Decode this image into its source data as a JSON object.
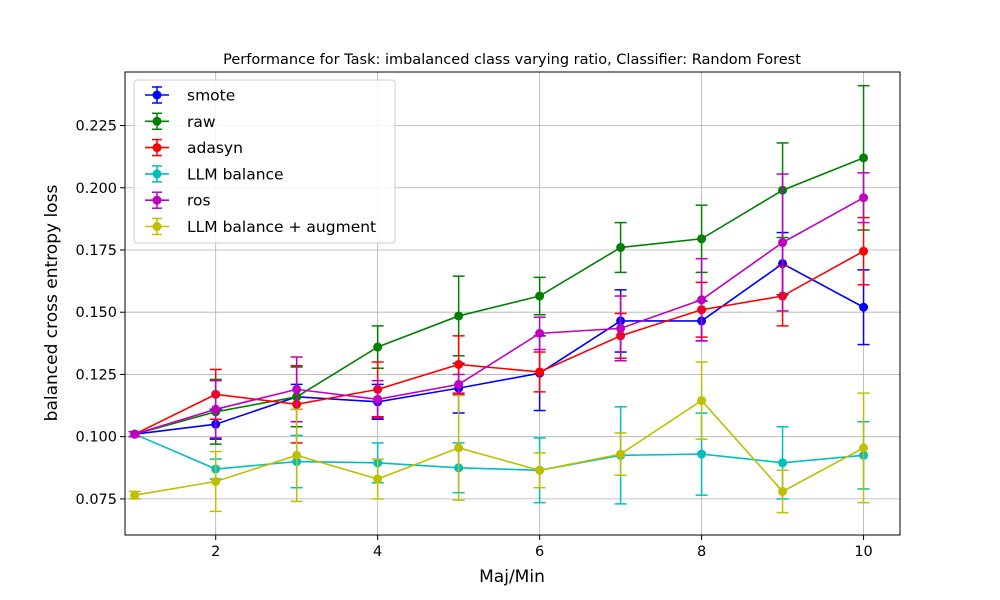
{
  "chart_data": {
    "type": "line",
    "title": "Performance for Task: imbalanced class varying ratio, Classifier: Random Forest",
    "xlabel": "Maj/Min",
    "ylabel": "balanced cross entropy loss",
    "xlim": [
      0.88,
      10.45
    ],
    "ylim": [
      0.0605,
      0.2465
    ],
    "xticks": [
      2,
      4,
      6,
      8,
      10
    ],
    "yticks": [
      0.075,
      0.1,
      0.125,
      0.15,
      0.175,
      0.2,
      0.225
    ],
    "ytick_labels": [
      "0.075",
      "0.100",
      "0.125",
      "0.150",
      "0.175",
      "0.200",
      "0.225"
    ],
    "grid": true,
    "legend_position": "top-left",
    "error_bars": true,
    "x": [
      1,
      2,
      3,
      4,
      5,
      6,
      7,
      8,
      9,
      10
    ],
    "series": [
      {
        "name": "smote",
        "color": "#0000ff",
        "values": [
          0.101,
          0.105,
          0.116,
          0.114,
          0.1195,
          0.1255,
          0.1465,
          0.1465,
          0.1695,
          0.152
        ],
        "errors": [
          0.001,
          0.006,
          0.005,
          0.007,
          0.01,
          0.015,
          0.0125,
          0.008,
          0.0125,
          0.015
        ]
      },
      {
        "name": "raw",
        "color": "#008000",
        "values": [
          0.101,
          0.11,
          0.116,
          0.136,
          0.1485,
          0.1565,
          0.176,
          0.1795,
          0.199,
          0.212
        ],
        "errors": [
          0.001,
          0.013,
          0.012,
          0.0085,
          0.016,
          0.0075,
          0.01,
          0.0135,
          0.019,
          0.029
        ]
      },
      {
        "name": "adasyn",
        "color": "#ff0000",
        "values": [
          0.101,
          0.117,
          0.113,
          0.119,
          0.129,
          0.126,
          0.1405,
          0.151,
          0.1565,
          0.1745
        ],
        "errors": [
          0.001,
          0.01,
          0.0155,
          0.011,
          0.0115,
          0.008,
          0.009,
          0.011,
          0.012,
          0.0135
        ]
      },
      {
        "name": "LLM balance",
        "color": "#00bfbf",
        "values": [
          0.101,
          0.087,
          0.09,
          0.0895,
          0.0875,
          0.0865,
          0.0925,
          0.093,
          0.0895,
          0.0925
        ],
        "errors": [
          0.001,
          0.004,
          0.0105,
          0.008,
          0.01,
          0.013,
          0.0195,
          0.0165,
          0.0145,
          0.0135
        ]
      },
      {
        "name": "ros",
        "color": "#bf00bf",
        "values": [
          0.101,
          0.111,
          0.119,
          0.115,
          0.121,
          0.1415,
          0.1435,
          0.155,
          0.178,
          0.196
        ],
        "errors": [
          0.001,
          0.0115,
          0.013,
          0.0075,
          0.004,
          0.0065,
          0.013,
          0.0165,
          0.0275,
          0.01
        ]
      },
      {
        "name": "LLM balance + augment",
        "color": "#bfbf00",
        "values": [
          0.0765,
          0.082,
          0.0925,
          0.083,
          0.0955,
          0.0865,
          0.093,
          0.1145,
          0.078,
          0.0955
        ],
        "errors": [
          0.0015,
          0.012,
          0.0185,
          0.008,
          0.021,
          0.007,
          0.0085,
          0.0155,
          0.0085,
          0.022
        ]
      }
    ]
  }
}
